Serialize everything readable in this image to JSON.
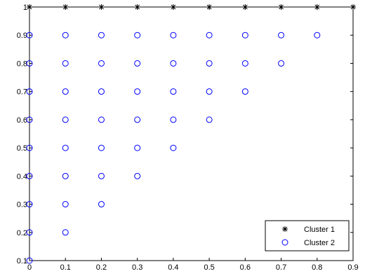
{
  "chart_data": {
    "type": "scatter",
    "title": "",
    "xlabel": "",
    "ylabel": "",
    "xlim": [
      0,
      0.9
    ],
    "ylim": [
      0.1,
      1
    ],
    "grid": false,
    "legend_placement": "bottom-right",
    "x_ticks": [
      "0",
      "0.1",
      "0.2",
      "0.3",
      "0.4",
      "0.5",
      "0.6",
      "0.7",
      "0.8",
      "0.9"
    ],
    "y_ticks": [
      "0.1",
      "0.2",
      "0.3",
      "0.4",
      "0.5",
      "0.6",
      "0.7",
      "0.8",
      "0.9",
      "1"
    ],
    "series": [
      {
        "name": "Cluster 1",
        "marker": "star-icon",
        "color": "#000000",
        "points": [
          [
            0,
            1
          ],
          [
            0.1,
            1
          ],
          [
            0.2,
            1
          ],
          [
            0.3,
            1
          ],
          [
            0.4,
            1
          ],
          [
            0.5,
            1
          ],
          [
            0.6,
            1
          ],
          [
            0.7,
            1
          ],
          [
            0.8,
            1
          ],
          [
            0.9,
            1
          ]
        ]
      },
      {
        "name": "Cluster 2",
        "marker": "circle-icon",
        "color": "#0000ff",
        "points": [
          [
            0,
            0.1
          ],
          [
            0,
            0.2
          ],
          [
            0,
            0.3
          ],
          [
            0,
            0.4
          ],
          [
            0,
            0.5
          ],
          [
            0,
            0.6
          ],
          [
            0,
            0.7
          ],
          [
            0,
            0.8
          ],
          [
            0,
            0.9
          ],
          [
            0.1,
            0.2
          ],
          [
            0.1,
            0.3
          ],
          [
            0.1,
            0.4
          ],
          [
            0.1,
            0.5
          ],
          [
            0.1,
            0.6
          ],
          [
            0.1,
            0.7
          ],
          [
            0.1,
            0.8
          ],
          [
            0.1,
            0.9
          ],
          [
            0.2,
            0.3
          ],
          [
            0.2,
            0.4
          ],
          [
            0.2,
            0.5
          ],
          [
            0.2,
            0.6
          ],
          [
            0.2,
            0.7
          ],
          [
            0.2,
            0.8
          ],
          [
            0.2,
            0.9
          ],
          [
            0.3,
            0.4
          ],
          [
            0.3,
            0.5
          ],
          [
            0.3,
            0.6
          ],
          [
            0.3,
            0.7
          ],
          [
            0.3,
            0.8
          ],
          [
            0.3,
            0.9
          ],
          [
            0.4,
            0.5
          ],
          [
            0.4,
            0.6
          ],
          [
            0.4,
            0.7
          ],
          [
            0.4,
            0.8
          ],
          [
            0.4,
            0.9
          ],
          [
            0.5,
            0.6
          ],
          [
            0.5,
            0.7
          ],
          [
            0.5,
            0.8
          ],
          [
            0.5,
            0.9
          ],
          [
            0.6,
            0.7
          ],
          [
            0.6,
            0.8
          ],
          [
            0.6,
            0.9
          ],
          [
            0.7,
            0.8
          ],
          [
            0.7,
            0.9
          ],
          [
            0.8,
            0.9
          ]
        ]
      }
    ]
  }
}
